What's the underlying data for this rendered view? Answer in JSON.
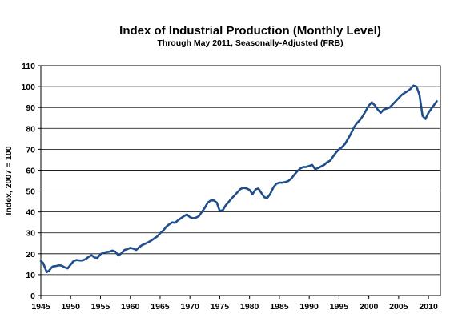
{
  "chart_data": {
    "type": "line",
    "title": "Index of Industrial Production (Monthly Level)",
    "subtitle": "Through  May 2011, Seasonally-Adjusted (FRB)",
    "ylabel": "Index, 2007 = 100",
    "xlabel": "",
    "xlim": [
      1945,
      2012
    ],
    "ylim": [
      0,
      110
    ],
    "xticks": [
      1945,
      1950,
      1955,
      1960,
      1965,
      1970,
      1975,
      1980,
      1985,
      1990,
      1995,
      2000,
      2005,
      2010
    ],
    "yticks": [
      0,
      10,
      20,
      30,
      40,
      50,
      60,
      70,
      80,
      90,
      100,
      110
    ],
    "grid": "horizontal",
    "line_color": "#1f4e8c",
    "series": [
      {
        "x": [
          1945.0,
          1945.4,
          1945.8,
          1946.0,
          1946.4,
          1946.8,
          1947.0,
          1947.5,
          1948.0,
          1948.5,
          1949.0,
          1949.5,
          1950.0,
          1950.5,
          1951.0,
          1951.5,
          1952.0,
          1952.5,
          1953.0,
          1953.5,
          1954.0,
          1954.5,
          1955.0,
          1955.5,
          1956.0,
          1956.5,
          1957.0,
          1957.5,
          1958.0,
          1958.5,
          1959.0,
          1959.5,
          1960.0,
          1960.5,
          1961.0,
          1961.5,
          1962.0,
          1962.5,
          1963.0,
          1963.5,
          1964.0,
          1964.5,
          1965.0,
          1965.5,
          1966.0,
          1966.5,
          1967.0,
          1967.5,
          1968.0,
          1968.5,
          1969.0,
          1969.5,
          1970.0,
          1970.5,
          1971.0,
          1971.5,
          1972.0,
          1972.5,
          1973.0,
          1973.5,
          1974.0,
          1974.5,
          1975.0,
          1975.5,
          1976.0,
          1976.5,
          1977.0,
          1977.5,
          1978.0,
          1978.5,
          1979.0,
          1979.5,
          1980.0,
          1980.5,
          1981.0,
          1981.5,
          1982.0,
          1982.5,
          1983.0,
          1983.5,
          1984.0,
          1984.5,
          1985.0,
          1985.5,
          1986.0,
          1986.5,
          1987.0,
          1987.5,
          1988.0,
          1988.5,
          1989.0,
          1989.5,
          1990.0,
          1990.5,
          1991.0,
          1991.5,
          1992.0,
          1992.5,
          1993.0,
          1993.5,
          1994.0,
          1994.5,
          1995.0,
          1995.5,
          1996.0,
          1996.5,
          1997.0,
          1997.5,
          1998.0,
          1998.5,
          1999.0,
          1999.5,
          2000.0,
          2000.5,
          2001.0,
          2001.5,
          2002.0,
          2002.5,
          2003.0,
          2003.5,
          2004.0,
          2004.5,
          2005.0,
          2005.5,
          2006.0,
          2006.5,
          2007.0,
          2007.5,
          2008.0,
          2008.5,
          2009.0,
          2009.5,
          2010.0,
          2010.5,
          2011.0,
          2011.4
        ],
        "y": [
          16.5,
          15.5,
          12.5,
          11.2,
          12.0,
          13.4,
          13.9,
          14.1,
          14.5,
          14.3,
          13.5,
          13.0,
          14.8,
          16.5,
          17.0,
          16.8,
          16.8,
          17.4,
          18.5,
          19.3,
          18.2,
          18.0,
          19.8,
          20.5,
          20.8,
          21.0,
          21.5,
          21.0,
          19.2,
          20.2,
          21.8,
          22.2,
          22.8,
          22.5,
          21.8,
          23.2,
          24.2,
          24.8,
          25.5,
          26.3,
          27.3,
          28.2,
          29.8,
          31.0,
          32.8,
          34.0,
          35.0,
          34.8,
          36.0,
          37.0,
          38.0,
          38.8,
          37.5,
          37.0,
          37.2,
          38.0,
          40.0,
          42.0,
          44.5,
          45.5,
          45.5,
          44.5,
          40.5,
          40.8,
          43.2,
          44.8,
          46.5,
          48.0,
          49.5,
          51.0,
          51.5,
          51.3,
          50.5,
          48.5,
          50.8,
          51.2,
          49.0,
          47.0,
          46.8,
          48.8,
          51.8,
          53.5,
          54.0,
          54.0,
          54.3,
          54.8,
          56.0,
          57.8,
          59.5,
          60.8,
          61.5,
          61.5,
          62.0,
          62.5,
          60.5,
          61.0,
          61.8,
          62.5,
          63.8,
          64.5,
          66.5,
          68.5,
          70.0,
          71.0,
          72.5,
          75.0,
          77.5,
          80.5,
          82.5,
          84.0,
          86.0,
          88.5,
          91.0,
          92.5,
          91.0,
          89.0,
          87.5,
          89.0,
          89.5,
          90.0,
          91.5,
          93.0,
          94.5,
          96.0,
          97.0,
          97.8,
          99.0,
          100.5,
          100.0,
          96.0,
          86.0,
          84.5,
          87.5,
          89.5,
          91.5,
          93.0
        ]
      }
    ]
  }
}
